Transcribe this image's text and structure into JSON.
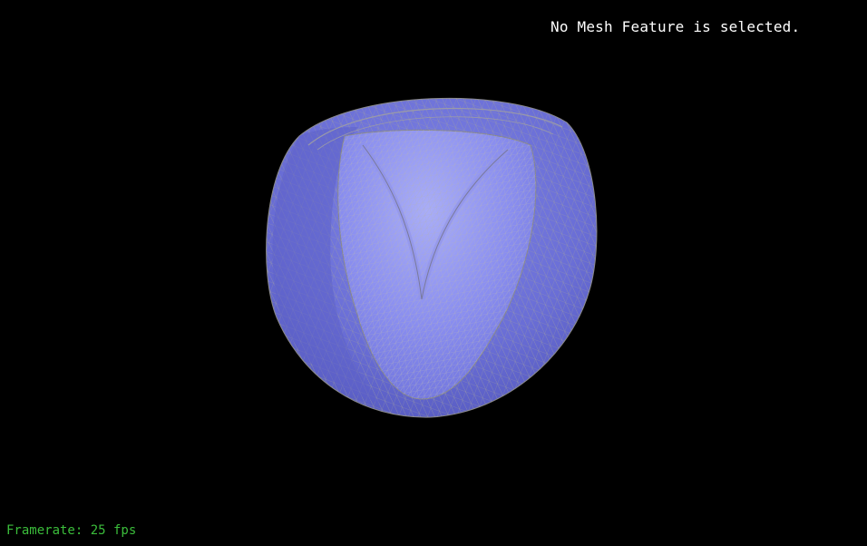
{
  "viewport": {
    "background": "#000000",
    "selection_status": "No Mesh Feature is selected.",
    "framerate_text": "Framerate: 25 fps"
  },
  "mesh": {
    "fill_outer": "#6b6fd9",
    "fill_inner": "#8e93f0",
    "wire_color": "#9a9a9a"
  }
}
